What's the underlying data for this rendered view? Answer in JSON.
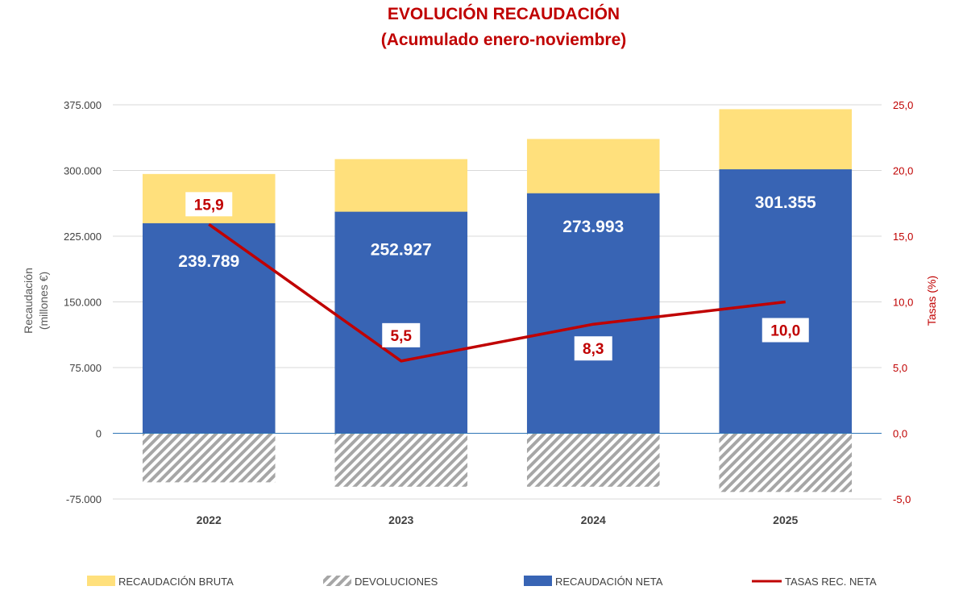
{
  "chart_data": {
    "type": "bar",
    "title": "EVOLUCIÓN RECAUDACIÓN",
    "subtitle": "(Acumulado enero-noviembre)",
    "categories": [
      "2022",
      "2023",
      "2024",
      "2025"
    ],
    "series": [
      {
        "name": "RECAUDACIÓN BRUTA",
        "kind": "stacked-bar",
        "values": [
          296000,
          313000,
          336000,
          370000
        ],
        "color": "#ffe07c"
      },
      {
        "name": "DEVOLUCIONES",
        "kind": "bar-hatched",
        "values": [
          -56000,
          -61000,
          -61000,
          -67000
        ],
        "color": "#a6a6a6"
      },
      {
        "name": "RECAUDACIÓN NETA",
        "kind": "bar",
        "values": [
          239789,
          252927,
          273993,
          301355
        ],
        "color": "#3864b4",
        "labels": [
          "239.789",
          "252.927",
          "273.993",
          "301.355"
        ]
      },
      {
        "name": "TASAS REC. NETA",
        "kind": "line",
        "axis": "right",
        "values": [
          15.9,
          5.5,
          8.3,
          10.0
        ],
        "color": "#c00000",
        "labels": [
          "15,9",
          "5,5",
          "8,3",
          "10,0"
        ]
      }
    ],
    "ylabel": "Recaudación (millones €)",
    "ylabel_lines": [
      "Recaudación",
      "(millones €)"
    ],
    "y2label": "Tasas (%)",
    "ylim": [
      -75000,
      375000
    ],
    "y2lim": [
      -5,
      25
    ],
    "yticks": [
      375000,
      300000,
      225000,
      150000,
      75000,
      0,
      -75000
    ],
    "yticklabels": [
      "375.000",
      "300.000",
      "225.000",
      "150.000",
      "75.000",
      "0",
      "-75.000"
    ],
    "y2ticks": [
      25,
      20,
      15,
      10,
      5,
      0,
      -5
    ],
    "y2ticklabels": [
      "25,0",
      "20,0",
      "15,0",
      "10,0",
      "5,0",
      "0,0",
      "-5,0"
    ],
    "grid": true,
    "legend_position": "bottom"
  }
}
